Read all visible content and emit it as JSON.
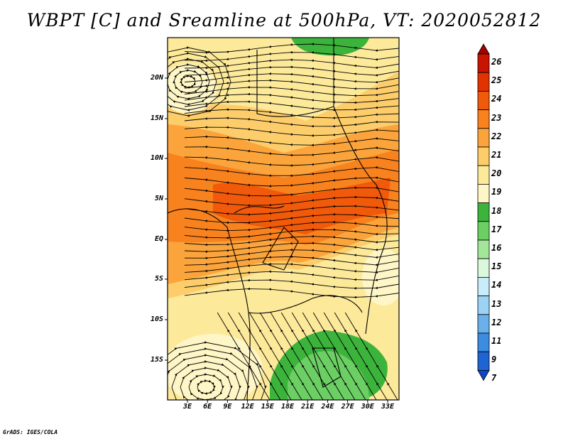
{
  "title": "WBPT [C] and Sreamline at 500hPa, VT: 2020052812",
  "credit": "GrADS: IGES/COLA",
  "latitude_labels": [
    "20N",
    "15N",
    "10N",
    "5N",
    "EQ",
    "5S",
    "10S",
    "15S"
  ],
  "longitude_labels": [
    "3E",
    "6E",
    "9E",
    "12E",
    "15E",
    "18E",
    "21E",
    "24E",
    "27E",
    "30E",
    "33E"
  ],
  "colorbar": {
    "labels": [
      "26",
      "25",
      "24",
      "23",
      "22",
      "21",
      "20",
      "19",
      "18",
      "17",
      "16",
      "15",
      "14",
      "13",
      "12",
      "11",
      "9",
      "7"
    ],
    "colors": [
      "#a50000",
      "#c81400",
      "#e13200",
      "#f05a0a",
      "#f8821e",
      "#fba43c",
      "#fccd6a",
      "#fde99a",
      "#fef6c6",
      "#3cb43c",
      "#6ccf64",
      "#a3e69a",
      "#dcf8dc",
      "#c8ecfa",
      "#9cd2f4",
      "#6ab0ea",
      "#3c8ce0",
      "#1e64d2",
      "#0a46c8"
    ]
  }
}
